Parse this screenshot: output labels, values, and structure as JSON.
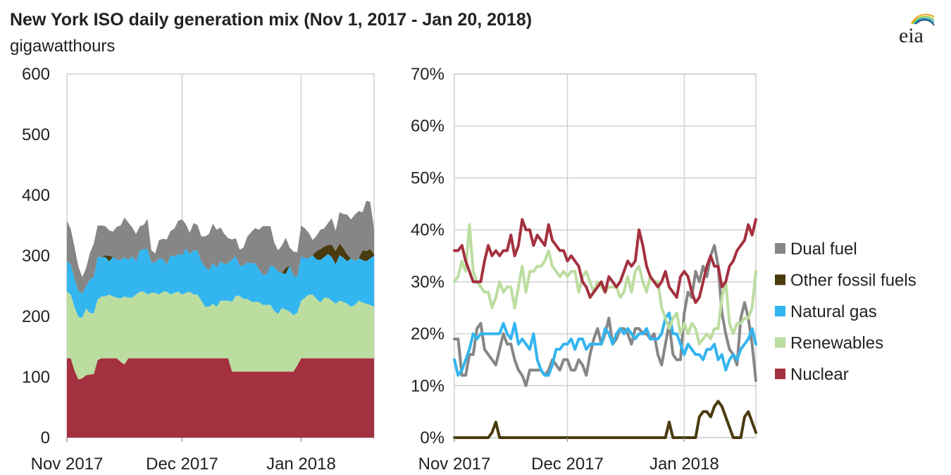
{
  "header": {
    "title": "New York ISO daily generation mix (Nov 1, 2017 - Jan 20, 2018)",
    "subtitle": "gigawatthours",
    "logo_text": "eia"
  },
  "chart_data": [
    {
      "type": "area",
      "stacked": true,
      "title": "",
      "ylabel": "gigawatthours",
      "ylim": [
        0,
        600
      ],
      "yticks": [
        "0",
        "100",
        "200",
        "300",
        "400",
        "500",
        "600"
      ],
      "xticks": [
        "Nov 2017",
        "Dec 2017",
        "Jan 2018"
      ],
      "grid": true,
      "x_start": "2017-11-01",
      "x_end": "2018-01-20",
      "series": [
        {
          "name": "Nuclear",
          "color": "#a4313f",
          "values": [
            131,
            131,
            110,
            96,
            98,
            103,
            104,
            105,
            128,
            131,
            131,
            131,
            131,
            131,
            125,
            121,
            131,
            131,
            131,
            131,
            131,
            131,
            131,
            131,
            131,
            131,
            131,
            131,
            131,
            131,
            131,
            131,
            131,
            131,
            131,
            131,
            131,
            131,
            131,
            131,
            131,
            131,
            131,
            109,
            109,
            109,
            109,
            109,
            109,
            109,
            109,
            109,
            109,
            109,
            109,
            109,
            109,
            109,
            109,
            109,
            119,
            131,
            131,
            131,
            131,
            131,
            131,
            131,
            131,
            131,
            131,
            131,
            131,
            131,
            131,
            131,
            131,
            131,
            131,
            131,
            131
          ]
        },
        {
          "name": "Renewables",
          "color": "#bcdda0",
          "values": [
            110,
            105,
            105,
            103,
            100,
            110,
            102,
            100,
            100,
            102,
            102,
            105,
            102,
            100,
            105,
            112,
            100,
            100,
            105,
            110,
            110,
            105,
            108,
            108,
            105,
            110,
            110,
            105,
            108,
            110,
            105,
            108,
            110,
            105,
            105,
            95,
            85,
            85,
            90,
            85,
            95,
            95,
            95,
            115,
            125,
            125,
            120,
            120,
            115,
            115,
            115,
            110,
            110,
            110,
            100,
            95,
            105,
            102,
            99,
            93,
            87,
            95,
            100,
            105,
            105,
            98,
            92,
            100,
            100,
            95,
            90,
            95,
            93,
            90,
            85,
            88,
            95,
            92,
            90,
            88,
            85
          ]
        },
        {
          "name": "Natural gas",
          "color": "#33b5ef",
          "values": [
            50,
            50,
            47,
            43,
            40,
            37,
            55,
            60,
            70,
            65,
            65,
            55,
            65,
            63,
            63,
            65,
            62,
            68,
            55,
            68,
            70,
            75,
            50,
            50,
            60,
            54,
            44,
            65,
            60,
            62,
            65,
            73,
            62,
            73,
            73,
            65,
            66,
            60,
            67,
            65,
            65,
            60,
            62,
            70,
            65,
            50,
            55,
            60,
            64,
            64,
            54,
            50,
            50,
            65,
            73,
            70,
            58,
            59,
            76,
            65,
            60,
            73,
            65,
            60,
            65,
            65,
            70,
            67,
            72,
            72,
            65,
            75,
            73,
            70,
            80,
            72,
            70,
            70,
            70,
            77,
            84
          ]
        },
        {
          "name": "Other fossil fuels",
          "color": "#4a3b0e",
          "values": [
            0,
            0,
            0,
            0,
            0,
            0,
            0,
            0,
            0,
            0,
            3,
            9,
            0,
            0,
            0,
            0,
            0,
            0,
            0,
            0,
            0,
            0,
            0,
            0,
            0,
            0,
            0,
            0,
            0,
            0,
            0,
            0,
            0,
            0,
            0,
            0,
            0,
            0,
            0,
            0,
            0,
            0,
            0,
            0,
            0,
            0,
            0,
            0,
            0,
            0,
            0,
            0,
            0,
            0,
            0,
            0,
            0,
            10,
            0,
            0,
            0,
            0,
            0,
            0,
            0,
            14,
            18,
            17,
            15,
            20,
            22,
            19,
            16,
            11,
            0,
            0,
            0,
            16,
            17,
            15,
            3
          ]
        },
        {
          "name": "Dual fuel",
          "color": "#868686",
          "values": [
            67,
            58,
            52,
            40,
            27,
            30,
            44,
            55,
            52,
            52,
            48,
            42,
            42,
            54,
            57,
            65,
            62,
            48,
            45,
            40,
            40,
            50,
            20,
            15,
            30,
            33,
            42,
            40,
            46,
            55,
            59,
            40,
            35,
            45,
            42,
            41,
            50,
            60,
            65,
            62,
            56,
            50,
            41,
            33,
            30,
            26,
            30,
            43,
            51,
            58,
            65,
            80,
            80,
            65,
            40,
            35,
            45,
            50,
            30,
            40,
            40,
            51,
            49,
            42,
            25,
            25,
            32,
            30,
            36,
            44,
            33,
            52,
            56,
            66,
            64,
            77,
            78,
            63,
            83,
            78,
            41
          ]
        }
      ]
    },
    {
      "type": "line",
      "title": "",
      "ylim": [
        0,
        70
      ],
      "yticks": [
        "0%",
        "10%",
        "20%",
        "30%",
        "40%",
        "50%",
        "60%",
        "70%"
      ],
      "xticks": [
        "Nov 2017",
        "Dec 2017",
        "Jan 2018"
      ],
      "grid": true,
      "x_start": "2017-11-01",
      "x_end": "2018-01-20",
      "legend_position": "right",
      "series": [
        {
          "name": "Dual fuel",
          "color": "#868686",
          "values": [
            19,
            19,
            12,
            12,
            16,
            16,
            21,
            22,
            17,
            16,
            15,
            14,
            17,
            20,
            18,
            18,
            15,
            13,
            12,
            10,
            13,
            13,
            13,
            13,
            12,
            13,
            15,
            14,
            13,
            15,
            15,
            13,
            13,
            15,
            14,
            12,
            16,
            19,
            21,
            18,
            20,
            23,
            18,
            19,
            21,
            21,
            20,
            18,
            21,
            21,
            20,
            20,
            19,
            20,
            16,
            14,
            18,
            22,
            16,
            15,
            15,
            24,
            28,
            27,
            32,
            30,
            33,
            31,
            35,
            37,
            33,
            24,
            20,
            17,
            16,
            14,
            23,
            26,
            23,
            18,
            11
          ]
        },
        {
          "name": "Other fossil fuels",
          "color": "#4a3b0e",
          "values": [
            0,
            0,
            0,
            0,
            0,
            0,
            0,
            0,
            0,
            0,
            1,
            3,
            0,
            0,
            0,
            0,
            0,
            0,
            0,
            0,
            0,
            0,
            0,
            0,
            0,
            0,
            0,
            0,
            0,
            0,
            0,
            0,
            0,
            0,
            0,
            0,
            0,
            0,
            0,
            0,
            0,
            0,
            0,
            0,
            0,
            0,
            0,
            0,
            0,
            0,
            0,
            0,
            0,
            0,
            0,
            0,
            0,
            3,
            0,
            0,
            0,
            0,
            0,
            0,
            0,
            4,
            5,
            5,
            4,
            6,
            7,
            6,
            4,
            2,
            0,
            0,
            0,
            4,
            5,
            3,
            1
          ]
        },
        {
          "name": "Natural gas",
          "color": "#33b5ef",
          "values": [
            15,
            12,
            13,
            15,
            17,
            20,
            19,
            20,
            20,
            20,
            20,
            20,
            20,
            22,
            20,
            19,
            22,
            18,
            19,
            18,
            17,
            20,
            15,
            13,
            12,
            12,
            14,
            17,
            17,
            18,
            18,
            19,
            17,
            19,
            19,
            17,
            18,
            18,
            18,
            18,
            21,
            20,
            18,
            20,
            21,
            20,
            21,
            20,
            19,
            20,
            20,
            21,
            19,
            19,
            19,
            20,
            23,
            24,
            20,
            20,
            18,
            16,
            18,
            17,
            16,
            16,
            15,
            17,
            17,
            18,
            15,
            16,
            13,
            15,
            16,
            15,
            17,
            18,
            19,
            21,
            18
          ]
        },
        {
          "name": "Renewables",
          "color": "#bcdda0",
          "values": [
            30,
            31,
            34,
            32,
            41,
            32,
            30,
            29,
            28,
            28,
            25,
            27,
            30,
            28,
            29,
            29,
            25,
            29,
            33,
            28,
            32,
            32,
            33,
            33,
            34,
            36,
            33,
            32,
            31,
            32,
            31,
            32,
            32,
            28,
            31,
            32,
            30,
            28,
            30,
            29,
            28,
            29,
            29,
            29,
            27,
            28,
            31,
            28,
            32,
            33,
            30,
            28,
            31,
            30,
            30,
            25,
            23,
            21,
            23,
            24,
            20,
            22,
            20,
            22,
            21,
            18,
            19,
            20,
            19,
            21,
            21,
            27,
            30,
            22,
            20,
            22,
            22,
            23,
            23,
            25,
            32
          ]
        },
        {
          "name": "Nuclear",
          "color": "#a4313f",
          "values": [
            36,
            36,
            37,
            34,
            32,
            30,
            30,
            30,
            34,
            37,
            35,
            36,
            35,
            36,
            36,
            39,
            35,
            37,
            42,
            40,
            40,
            37,
            39,
            38,
            37,
            41,
            38,
            37,
            36,
            36,
            34,
            35,
            34,
            33,
            30,
            29,
            27,
            28,
            29,
            30,
            28,
            31,
            30,
            29,
            30,
            32,
            34,
            33,
            34,
            40,
            37,
            33,
            31,
            30,
            29,
            30,
            32,
            29,
            28,
            27,
            31,
            32,
            31,
            28,
            26,
            27,
            30,
            33,
            35,
            33,
            33,
            29,
            30,
            33,
            34,
            36,
            37,
            38,
            41,
            39,
            42
          ]
        }
      ]
    }
  ]
}
